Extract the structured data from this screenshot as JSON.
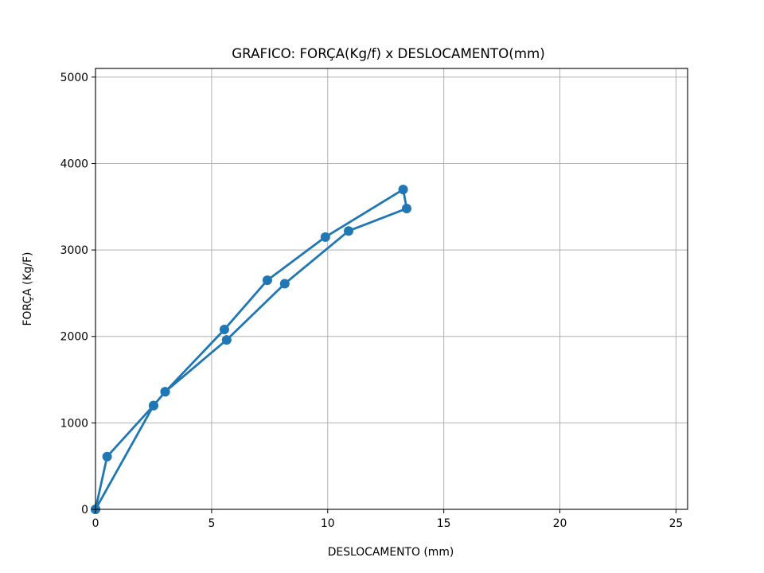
{
  "chart_data": {
    "type": "line",
    "title": "GRAFICO: FORÇA(Kg/f) x DESLOCAMENTO(mm)",
    "xlabel": "DESLOCAMENTO (mm)",
    "ylabel": "FORÇA (Kg/F)",
    "xlim": [
      0,
      25.5
    ],
    "ylim": [
      0,
      5100
    ],
    "xticks": [
      0,
      5,
      10,
      15,
      20,
      25
    ],
    "yticks": [
      0,
      1000,
      2000,
      3000,
      4000,
      5000
    ],
    "xtick_labels": [
      "0",
      "5",
      "10",
      "15",
      "20",
      "25"
    ],
    "ytick_labels": [
      "0",
      "1000",
      "2000",
      "3000",
      "4000",
      "5000"
    ],
    "grid": true,
    "marker": "circle",
    "series": [
      {
        "color": "#1f77b4",
        "points": [
          {
            "x": 0,
            "y": 0
          },
          {
            "x": 0.5,
            "y": 610
          },
          {
            "x": 2.5,
            "y": 1200
          },
          {
            "x": 0,
            "y": 0
          },
          {
            "x": 2.5,
            "y": 1200
          },
          {
            "x": 3.0,
            "y": 1360
          },
          {
            "x": 5.55,
            "y": 2080
          },
          {
            "x": 7.4,
            "y": 2650
          },
          {
            "x": 9.9,
            "y": 3150
          },
          {
            "x": 13.25,
            "y": 3700
          },
          {
            "x": 13.4,
            "y": 3480
          },
          {
            "x": 10.9,
            "y": 3220
          },
          {
            "x": 8.15,
            "y": 2610
          },
          {
            "x": 5.65,
            "y": 1960
          },
          {
            "x": 3.0,
            "y": 1360
          }
        ]
      }
    ]
  }
}
